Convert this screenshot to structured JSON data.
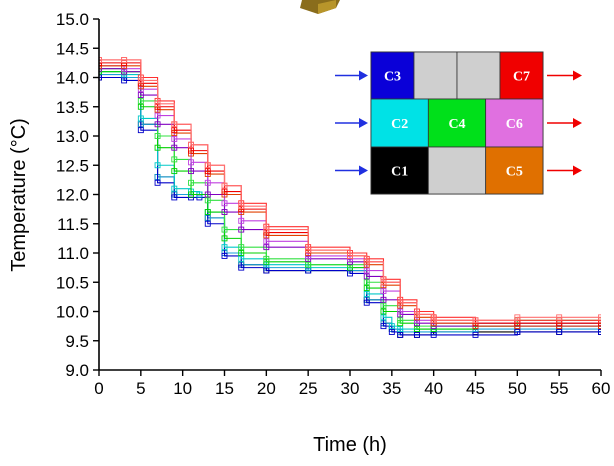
{
  "chart_data": {
    "type": "line",
    "xlabel": "Time (h)",
    "ylabel": "Temperature (°C)",
    "xlim": [
      0,
      60
    ],
    "ylim": [
      9.0,
      15.0
    ],
    "xticks": [
      "0",
      "5",
      "10",
      "15",
      "20",
      "25",
      "30",
      "35",
      "40",
      "45",
      "50",
      "55",
      "60"
    ],
    "yticks": [
      "9.0",
      "9.5",
      "10.0",
      "10.5",
      "11.0",
      "11.5",
      "12.0",
      "12.5",
      "13.0",
      "13.5",
      "14.0",
      "14.5",
      "15.0"
    ],
    "grid": false,
    "legend_placement": "inset schematic, top-right",
    "inset": {
      "rows": [
        [
          {
            "label": "C3",
            "color": "#0a00d8"
          },
          {
            "label": "",
            "color": "#cfcfcf"
          },
          {
            "label": "",
            "color": "#cfcfcf"
          },
          {
            "label": "C7",
            "color": "#f00000"
          }
        ],
        [
          {
            "label": "C2",
            "color": "#00e2e6"
          },
          {
            "label": "C4",
            "color": "#00e01a"
          },
          {
            "label": "C6",
            "color": "#e070e0"
          }
        ],
        [
          {
            "label": "C1",
            "color": "#000000"
          },
          {
            "label": "",
            "color": "#cfcfcf"
          },
          {
            "label": "C5",
            "color": "#e07000"
          }
        ]
      ],
      "inflow_arrow_color": "#2030e0",
      "outflow_arrow_color": "#f00000"
    },
    "series": [
      {
        "color": "#000000",
        "x": [
          0,
          3,
          5,
          7,
          9,
          11,
          12,
          13,
          15,
          17,
          20,
          25,
          30,
          32,
          34,
          35,
          36,
          38,
          40,
          45,
          50,
          55,
          60
        ],
        "y": [
          14.0,
          14.0,
          13.2,
          12.3,
          12.0,
          12.0,
          12.0,
          11.6,
          11.0,
          10.8,
          10.7,
          10.7,
          10.7,
          10.2,
          9.8,
          9.7,
          9.6,
          9.6,
          9.65,
          9.65,
          9.65,
          9.65,
          9.65
        ]
      },
      {
        "color": "#1aa0d8",
        "x": [
          0,
          3,
          5,
          7,
          9,
          11,
          12,
          13,
          15,
          17,
          20,
          25,
          30,
          32,
          34,
          35,
          36,
          38,
          40,
          45,
          50,
          55,
          60
        ],
        "y": [
          14.05,
          14.0,
          13.2,
          12.3,
          12.0,
          12.0,
          12.0,
          11.6,
          11.0,
          10.8,
          10.75,
          10.7,
          10.7,
          10.2,
          9.8,
          9.7,
          9.65,
          9.65,
          9.65,
          9.7,
          9.7,
          9.7,
          9.7
        ]
      },
      {
        "color": "#0000c8",
        "x": [
          0,
          3,
          5,
          7,
          9,
          11,
          12,
          13,
          15,
          17,
          20,
          25,
          30,
          32,
          34,
          35,
          36,
          38,
          40,
          45,
          50,
          55,
          60
        ],
        "y": [
          14.0,
          13.95,
          13.1,
          12.2,
          11.95,
          11.95,
          11.95,
          11.5,
          10.95,
          10.75,
          10.7,
          10.7,
          10.65,
          10.15,
          9.75,
          9.65,
          9.6,
          9.6,
          9.6,
          9.6,
          9.65,
          9.65,
          9.65
        ]
      },
      {
        "color": "#00c8c8",
        "x": [
          0,
          3,
          5,
          7,
          9,
          11,
          12,
          13,
          15,
          17,
          20,
          25,
          30,
          32,
          34,
          35,
          36,
          38,
          40,
          45,
          50,
          55,
          60
        ],
        "y": [
          14.1,
          14.05,
          13.3,
          12.5,
          12.1,
          12.05,
          12.0,
          11.7,
          11.1,
          10.9,
          10.8,
          10.75,
          10.75,
          10.3,
          9.9,
          9.75,
          9.7,
          9.7,
          9.7,
          9.75,
          9.75,
          9.75,
          9.75
        ]
      },
      {
        "color": "#00d000",
        "x": [
          0,
          3,
          5,
          7,
          9,
          11,
          13,
          15,
          17,
          20,
          25,
          30,
          32,
          34,
          36,
          38,
          40,
          45,
          50,
          55,
          60
        ],
        "y": [
          14.1,
          14.1,
          13.5,
          12.8,
          12.4,
          12.0,
          11.7,
          11.25,
          11.0,
          10.85,
          10.8,
          10.75,
          10.4,
          10.0,
          9.8,
          9.7,
          9.7,
          9.75,
          9.8,
          9.8,
          9.8
        ]
      },
      {
        "color": "#30e040",
        "x": [
          0,
          3,
          5,
          7,
          9,
          11,
          13,
          15,
          17,
          20,
          25,
          30,
          32,
          34,
          36,
          38,
          40,
          45,
          50,
          55,
          60
        ],
        "y": [
          14.15,
          14.1,
          13.6,
          13.0,
          12.6,
          12.2,
          11.9,
          11.4,
          11.1,
          10.9,
          10.8,
          10.8,
          10.5,
          10.1,
          9.85,
          9.75,
          9.75,
          9.8,
          9.85,
          9.85,
          9.85
        ]
      },
      {
        "color": "#8000c0",
        "x": [
          0,
          3,
          5,
          7,
          9,
          11,
          13,
          15,
          17,
          20,
          25,
          30,
          32,
          34,
          36,
          38,
          40,
          45,
          50,
          55,
          60
        ],
        "y": [
          14.15,
          14.1,
          13.7,
          13.2,
          12.8,
          12.4,
          12.0,
          11.7,
          11.4,
          11.1,
          10.9,
          10.85,
          10.6,
          10.2,
          9.95,
          9.8,
          9.75,
          9.75,
          9.75,
          9.75,
          9.75
        ]
      },
      {
        "color": "#c040e0",
        "x": [
          0,
          3,
          5,
          7,
          9,
          11,
          13,
          15,
          17,
          20,
          25,
          30,
          32,
          34,
          36,
          38,
          40,
          45,
          50,
          55,
          60
        ],
        "y": [
          14.2,
          14.15,
          13.8,
          13.35,
          12.95,
          12.55,
          12.2,
          11.85,
          11.55,
          11.2,
          10.95,
          10.9,
          10.7,
          10.35,
          10.0,
          9.85,
          9.8,
          9.8,
          9.8,
          9.8,
          9.8
        ]
      },
      {
        "color": "#e04000",
        "x": [
          0,
          3,
          5,
          7,
          9,
          11,
          13,
          15,
          17,
          20,
          25,
          30,
          32,
          34,
          36,
          38,
          40,
          45,
          50,
          55,
          60
        ],
        "y": [
          14.2,
          14.2,
          13.85,
          13.45,
          13.05,
          12.7,
          12.35,
          12.0,
          11.7,
          11.3,
          11.0,
          10.95,
          10.8,
          10.45,
          10.1,
          9.9,
          9.8,
          9.75,
          9.75,
          9.75,
          9.75
        ]
      },
      {
        "color": "#f00000",
        "x": [
          0,
          3,
          5,
          7,
          9,
          11,
          13,
          15,
          17,
          20,
          25,
          30,
          32,
          34,
          36,
          38,
          40,
          45,
          50,
          55,
          60
        ],
        "y": [
          14.25,
          14.25,
          13.9,
          13.5,
          13.1,
          12.75,
          12.4,
          12.05,
          11.75,
          11.35,
          11.05,
          10.95,
          10.85,
          10.5,
          10.15,
          9.95,
          9.85,
          9.8,
          9.8,
          9.8,
          9.8
        ]
      },
      {
        "color": "#ff3030",
        "x": [
          0,
          3,
          5,
          7,
          9,
          11,
          13,
          15,
          17,
          20,
          25,
          30,
          32,
          34,
          36,
          38,
          40,
          45,
          50,
          55,
          60
        ],
        "y": [
          14.3,
          14.3,
          14.0,
          13.6,
          13.2,
          12.85,
          12.5,
          12.15,
          11.85,
          11.45,
          11.1,
          11.0,
          10.9,
          10.55,
          10.2,
          10.0,
          9.9,
          9.85,
          9.85,
          9.85,
          9.85
        ]
      },
      {
        "color": "#ff7070",
        "x": [
          0,
          3,
          5,
          7,
          9,
          11,
          13,
          15,
          17,
          20,
          25,
          30,
          32,
          34,
          36,
          38,
          40,
          45,
          50,
          55,
          60
        ],
        "y": [
          14.3,
          14.3,
          13.95,
          13.55,
          13.2,
          12.85,
          12.5,
          12.15,
          11.8,
          11.4,
          11.05,
          10.95,
          10.85,
          10.5,
          10.15,
          9.95,
          9.85,
          9.85,
          9.9,
          9.9,
          9.9
        ]
      }
    ]
  }
}
